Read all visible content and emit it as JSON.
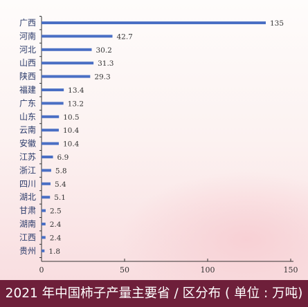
{
  "chart_data": {
    "type": "bar",
    "orientation": "horizontal",
    "categories": [
      "广西",
      "河南",
      "河北",
      "山西",
      "陕西",
      "福建",
      "广东",
      "山东",
      "云南",
      "安徽",
      "江苏",
      "浙江",
      "四川",
      "湖北",
      "甘肃",
      "湖南",
      "江西",
      "贵州"
    ],
    "values": [
      135,
      42.7,
      30.2,
      31.3,
      29.3,
      13.4,
      13.2,
      10.5,
      10.4,
      10.4,
      6.9,
      5.8,
      5.4,
      5.1,
      2.5,
      2.4,
      2.4,
      1.8
    ],
    "value_labels": [
      "135",
      "42.7",
      "30.2",
      "31.3",
      "29.3",
      "13.4",
      "13.2",
      "10.5",
      "10.4",
      "10.4",
      "6.9",
      "5.8",
      "5.4",
      "5.1",
      "2.5",
      "2.4",
      "2.4",
      "1.8"
    ],
    "xticks": [
      "0",
      "50",
      "100",
      "150"
    ],
    "xlim": [
      0,
      150
    ],
    "bar_color": "#4a6fc4",
    "title": "2021 年中国柿子产量主要省 / 区分布 ( 单位 : 万吨)",
    "grid": false
  },
  "footer_color": "#6e1f3a"
}
